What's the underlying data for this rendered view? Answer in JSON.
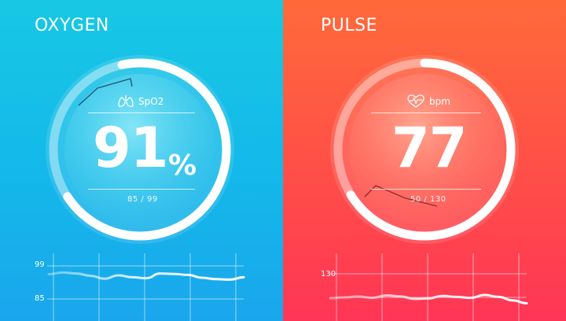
{
  "oxygen": {
    "title": "OXYGEN",
    "sensor_label": "SpO2",
    "sensor_icon": "lungs-icon",
    "value": "91",
    "unit": "%",
    "range": "85 / 99",
    "level": 0.91,
    "accent": "#17c8e4",
    "chart_data": {
      "type": "line",
      "yticks": [
        "99",
        "85"
      ],
      "ylim": [
        85,
        99
      ],
      "series": [
        {
          "values": [
            95.5,
            96.2,
            95.8,
            94.8,
            93.6,
            95.0,
            94.2,
            93.8,
            95.8,
            95.6,
            95.2,
            94.0,
            93.4,
            93.2,
            94.2
          ]
        }
      ]
    }
  },
  "pulse": {
    "title": "PULSE",
    "sensor_label": "bpm",
    "sensor_icon": "heart-rate-icon",
    "value": "77",
    "unit": "",
    "range": "50 / 130",
    "level": 0.77,
    "accent": "#ff4e48",
    "chart_data": {
      "type": "line",
      "yticks": [
        "130"
      ],
      "ylim": [
        50,
        130
      ],
      "series": [
        {
          "values": [
            80,
            82,
            84,
            81,
            86,
            84,
            79,
            80,
            85,
            83,
            81,
            87,
            83,
            76,
            70
          ]
        }
      ]
    }
  }
}
